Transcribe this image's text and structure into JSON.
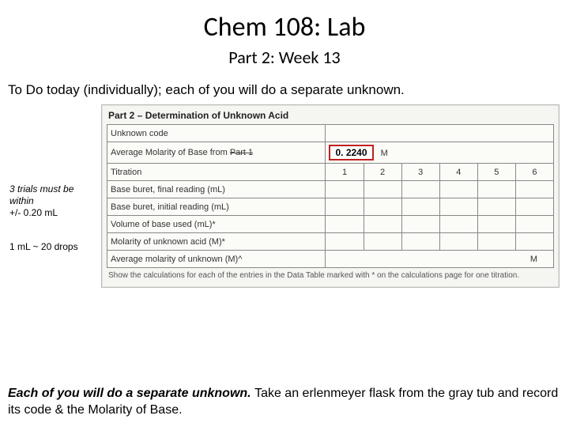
{
  "title": "Chem 108: Lab",
  "subtitle": "Part 2: Week 13",
  "todo": "To Do today (individually); each of you will do a separate unknown.",
  "sideNotes": {
    "note1a": "3 trials must be within",
    "note1b": "+/- 0.20 mL",
    "note2": "1 mL ~ 20 drops"
  },
  "scan": {
    "heading": "Part 2 – Determination of Unknown Acid",
    "rows": {
      "unknownCode": "Unknown code",
      "avgMolLabel": "Average Molarity of Base from",
      "avgMolStrike": "Part 1",
      "avgMolValue": "0. 2240",
      "avgMolUnit": "M",
      "titration": "Titration",
      "cols": [
        "1",
        "2",
        "3",
        "4",
        "5",
        "6"
      ],
      "baseFinal": "Base buret, final reading (mL)",
      "baseInitial": "Base buret, initial reading (mL)",
      "volBase": "Volume of base used (mL)*",
      "molUnknown": "Molarity of unknown acid (M)*",
      "avgMolAcid": "Average molarity of unknown (M)^",
      "avgMolAcidUnit": "M"
    },
    "footnote": "Show the calculations for each of the entries in the Data Table marked with * on the calculations page for one titration."
  },
  "bottom": {
    "boldItalic": "Each of you will do a separate unknown. ",
    "rest": "Take an erlenmeyer flask from the gray tub and record its code & the Molarity of Base."
  }
}
